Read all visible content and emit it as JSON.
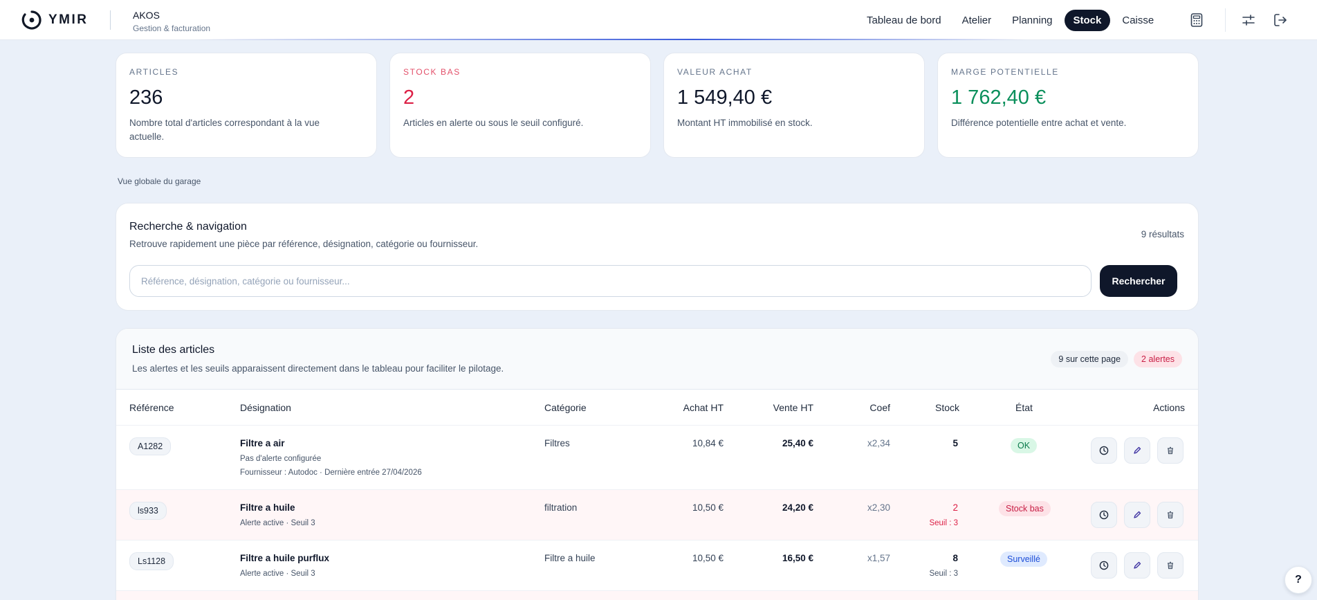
{
  "header": {
    "logo_text": "YMIR",
    "company_name": "AKOS",
    "company_sub": "Gestion & facturation",
    "nav": [
      {
        "label": "Tableau de bord"
      },
      {
        "label": "Atelier"
      },
      {
        "label": "Planning"
      },
      {
        "label": "Stock",
        "active": true
      },
      {
        "label": "Caisse"
      }
    ],
    "icons": [
      "calculator-icon",
      "sliders-icon",
      "logout-icon"
    ]
  },
  "kpis": [
    {
      "label": "ARTICLES",
      "value": "236",
      "desc": "Nombre total d'articles correspondant à la vue actuelle."
    },
    {
      "label": "STOCK BAS",
      "value": "2",
      "desc": "Articles en alerte ou sous le seuil configuré."
    },
    {
      "label": "VALEUR ACHAT",
      "value": "1 549,40 €",
      "desc": "Montant HT immobilisé en stock."
    },
    {
      "label": "MARGE POTENTIELLE",
      "value": "1 762,40 €",
      "desc": "Différence potentielle entre achat et vente."
    }
  ],
  "overview_label": "Vue globale du garage",
  "search": {
    "title": "Recherche & navigation",
    "subtitle": "Retrouve rapidement une pièce par référence, désignation, catégorie ou fournisseur.",
    "results": "9 résultats",
    "placeholder": "Référence, désignation, catégorie ou fournisseur...",
    "value": "",
    "button": "Rechercher"
  },
  "list": {
    "title": "Liste des articles",
    "subtitle": "Les alertes et les seuils apparaissent directement dans le tableau pour faciliter le pilotage.",
    "badge_page": "9 sur cette page",
    "badge_alerts": "2 alertes",
    "columns": [
      "Référence",
      "Désignation",
      "Catégorie",
      "Achat HT",
      "Vente HT",
      "Coef",
      "Stock",
      "État",
      "Actions"
    ],
    "rows": [
      {
        "ref": "A1282",
        "designation": "Filtre a air",
        "sub1": "Pas d'alerte configurée",
        "sub2": "Fournisseur : Autodoc · Dernière entrée 27/04/2026",
        "category": "Filtres",
        "achat": "10,84 €",
        "vente": "25,40 €",
        "coef": "x2,34",
        "stock": "5",
        "seuil": "",
        "state": "OK"
      },
      {
        "ref": "ls933",
        "designation": "Filtre a huile",
        "sub1": "Alerte active · Seuil 3",
        "sub2": "",
        "category": "filtration",
        "achat": "10,50 €",
        "vente": "24,20 €",
        "coef": "x2,30",
        "stock": "2",
        "seuil": "Seuil : 3",
        "state": "Stock bas"
      },
      {
        "ref": "Ls1128",
        "designation": "Filtre a huile purflux",
        "sub1": "Alerte active · Seuil 3",
        "sub2": "",
        "category": "Filtre a huile",
        "achat": "10,50 €",
        "vente": "16,50 €",
        "coef": "x1,57",
        "stock": "8",
        "seuil": "Seuil : 3",
        "state": "Surveillé"
      }
    ]
  },
  "help_label": "?",
  "colors": {
    "accent_dark": "#0f172a",
    "alert_red": "#dc1f45",
    "margin_green": "#0a8f5b",
    "page_bg": "#eaf0f9"
  }
}
